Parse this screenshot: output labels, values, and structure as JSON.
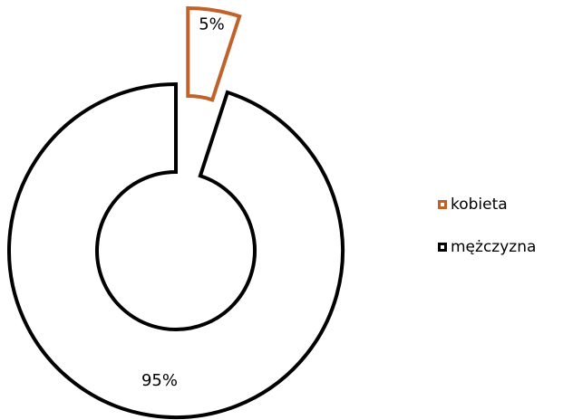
{
  "chart_data": {
    "type": "pie",
    "subtype": "donut",
    "title": "",
    "categories": [
      "kobieta",
      "mężczyzna"
    ],
    "values": [
      5,
      95
    ],
    "data_labels": [
      "5%",
      "95%"
    ],
    "exploded": "kobieta",
    "legend_position": "right",
    "colors": {
      "kobieta": "#C0622A",
      "mężczyzna": "#000000",
      "fill": "#FFFFFF"
    }
  },
  "legend": {
    "items": [
      {
        "label": "kobieta",
        "color": "#C0622A"
      },
      {
        "label": "mężczyzna",
        "color": "#000000"
      }
    ]
  }
}
